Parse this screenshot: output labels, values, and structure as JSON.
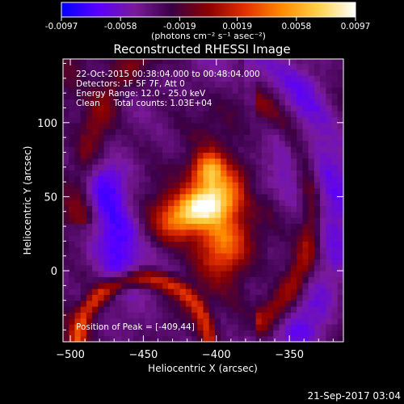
{
  "chart_data": {
    "type": "heatmap",
    "title": "Reconstructed RHESSI Image",
    "xlabel": "Heliocentric X (arcsec)",
    "ylabel": "Heliocentric Y (arcsec)",
    "xlim": [
      -505,
      -313
    ],
    "ylim": [
      -48,
      143
    ],
    "x_ticks": [
      -500,
      -450,
      -400,
      -350
    ],
    "y_ticks": [
      0,
      50,
      100
    ],
    "colorbar": {
      "min": -0.0097,
      "max": 0.0097,
      "ticks": [
        "-0.0097",
        "-0.0058",
        "-0.0019",
        "0.0019",
        "0.0058",
        "0.0097"
      ],
      "tick_values": [
        -0.0097,
        -0.0058,
        -0.0019,
        0.0019,
        0.0058,
        0.0097
      ],
      "colors": [
        "#0000ff",
        "#5b00ff",
        "#7a1a9a",
        "#3a0046",
        "#8b0000",
        "#e33000",
        "#ff8a00",
        "#ffd24a",
        "#ffffff"
      ],
      "unit_label": "(photons cm⁻² s⁻¹ asec⁻²)"
    },
    "annotations": [
      "22-Oct-2015 00:38:04.000 to 00:48:04.000",
      "Detectors: 1F 5F 7F, Att 0",
      "Energy Range: 12.0 - 25.0 keV",
      "Clean     Total counts: 1.03E+04"
    ],
    "peak_text": "Position of Peak = [-409,44]",
    "peak": [
      -409,
      44
    ]
  },
  "footer": {
    "timestamp": "21-Sep-2017 03:04"
  }
}
